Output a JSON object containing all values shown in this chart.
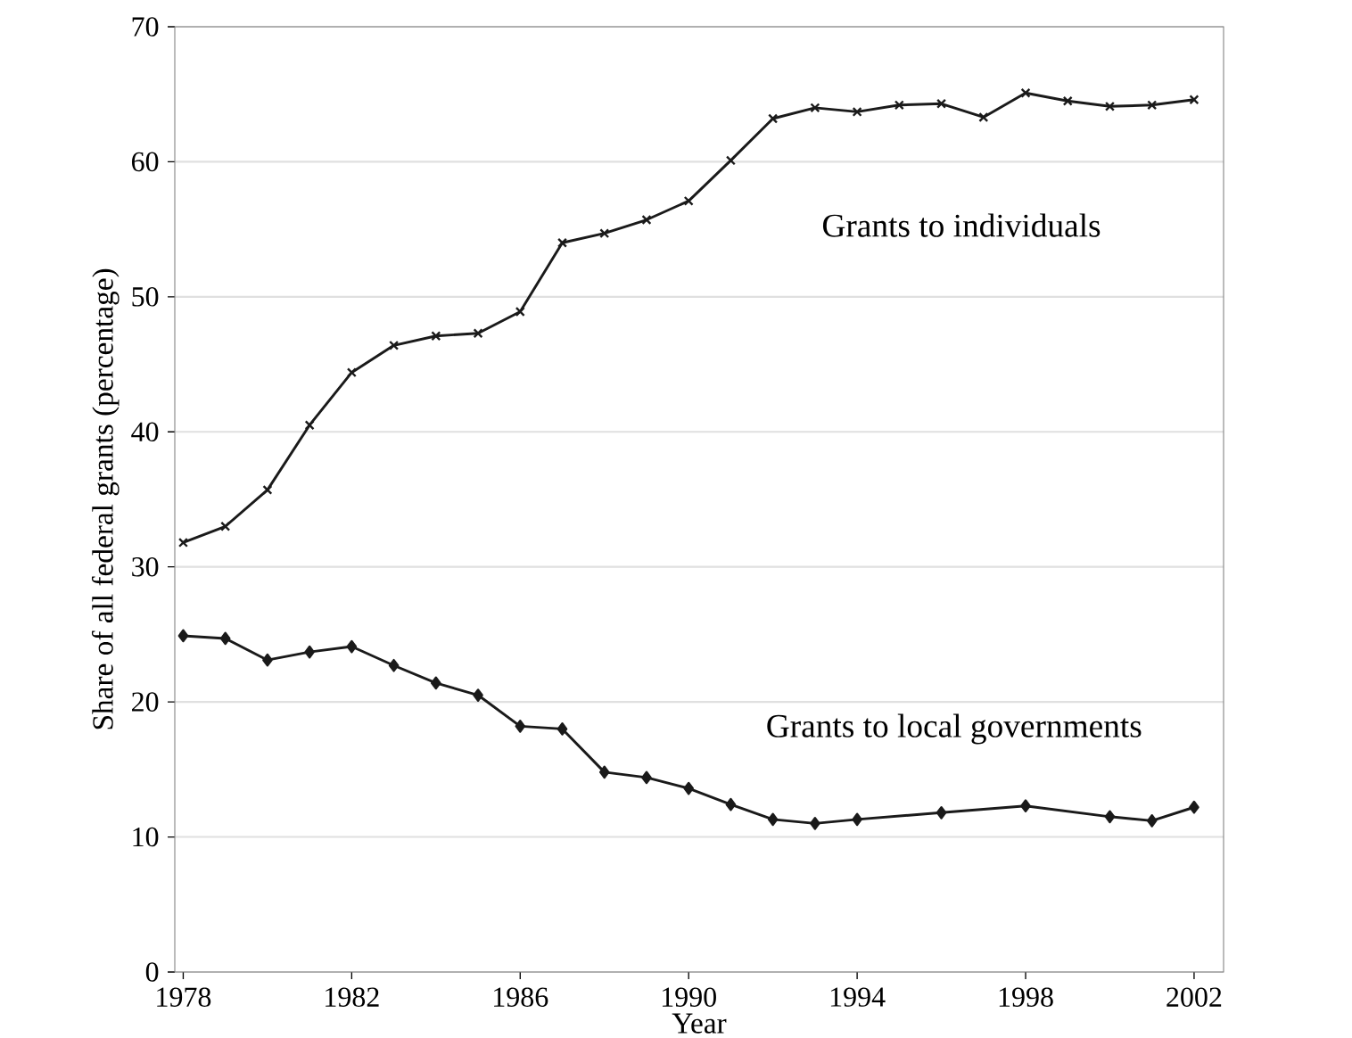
{
  "chart_data": {
    "type": "line",
    "xlabel": "Year",
    "ylabel": "Share of all federal grants (percentage)",
    "xlim": [
      1977.8,
      2002.7
    ],
    "ylim": [
      0,
      70
    ],
    "xticks": [
      1978,
      1982,
      1986,
      1990,
      1994,
      1998,
      2002
    ],
    "yticks": [
      0,
      10,
      20,
      30,
      40,
      50,
      60,
      70
    ],
    "grid": "y",
    "series": [
      {
        "color": "#1a1a1a",
        "marker": "cross",
        "x": [
          1978,
          1979,
          1980,
          1981,
          1982,
          1983,
          1984,
          1985,
          1986,
          1987,
          1988,
          1989,
          1990,
          1991,
          1992,
          1993,
          1994,
          1995,
          1996,
          1997,
          1998,
          1999,
          2000,
          2001,
          2002
        ],
        "values": [
          31.8,
          33.0,
          35.7,
          40.5,
          44.4,
          46.4,
          47.1,
          47.3,
          48.9,
          54.0,
          54.7,
          55.7,
          57.1,
          60.1,
          63.2,
          64.0,
          63.7,
          64.2,
          64.3,
          63.3,
          65.1,
          64.5,
          64.1,
          64.2,
          64.6
        ]
      },
      {
        "color": "#1a1a1a",
        "marker": "diamond",
        "x": [
          1978,
          1979,
          1980,
          1981,
          1982,
          1983,
          1984,
          1985,
          1986,
          1987,
          1988,
          1989,
          1990,
          1991,
          1992,
          1993,
          1994,
          1996,
          1998,
          2000,
          2001,
          2002
        ],
        "values": [
          24.9,
          24.7,
          23.1,
          23.7,
          24.1,
          22.7,
          21.4,
          20.5,
          18.2,
          18.0,
          14.8,
          14.4,
          13.6,
          12.4,
          11.3,
          11.0,
          11.3,
          11.8,
          12.3,
          11.5,
          11.2,
          12.2
        ]
      }
    ],
    "annotations": [
      "Grants to individuals",
      "Grants to local governments"
    ]
  }
}
